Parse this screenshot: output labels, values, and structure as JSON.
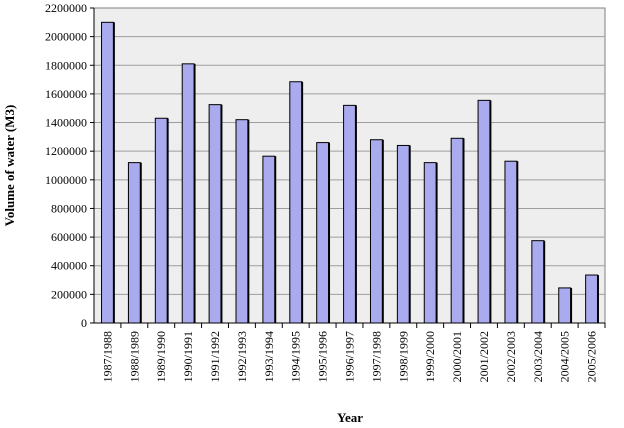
{
  "chart_data": {
    "type": "bar",
    "title": "",
    "xlabel": "Year",
    "ylabel": "Volume of water (M3)",
    "ylim": [
      0,
      2200000
    ],
    "ytick_step": 200000,
    "ytick_labels": [
      "0",
      "200000",
      "400000",
      "600000",
      "800000",
      "1000000",
      "1200000",
      "1400000",
      "1600000",
      "1800000",
      "2000000",
      "2200000"
    ],
    "grid": "horizontal",
    "legend": "none",
    "categories": [
      "1987/1988",
      "1988/1989",
      "1989/1990",
      "1990/1991",
      "1991/1992",
      "1992/1993",
      "1993/1994",
      "1994/1995",
      "1995/1996",
      "1996/1997",
      "1997/1998",
      "1998/1999",
      "1999/2000",
      "2000/2001",
      "2001/2002",
      "2002/2003",
      "2003/2004",
      "2004/2005",
      "2005/2006"
    ],
    "values": [
      2100000,
      1120000,
      1430000,
      1810000,
      1525000,
      1420000,
      1165000,
      1685000,
      1260000,
      1520000,
      1280000,
      1240000,
      1120000,
      1290000,
      1555000,
      1130000,
      575000,
      245000,
      335000
    ],
    "colors": {
      "bar_fill": "#aaaaee",
      "bar_stroke": "#000000",
      "plot_bg": "#eeeeee",
      "grid": "#9e9e9e"
    }
  }
}
